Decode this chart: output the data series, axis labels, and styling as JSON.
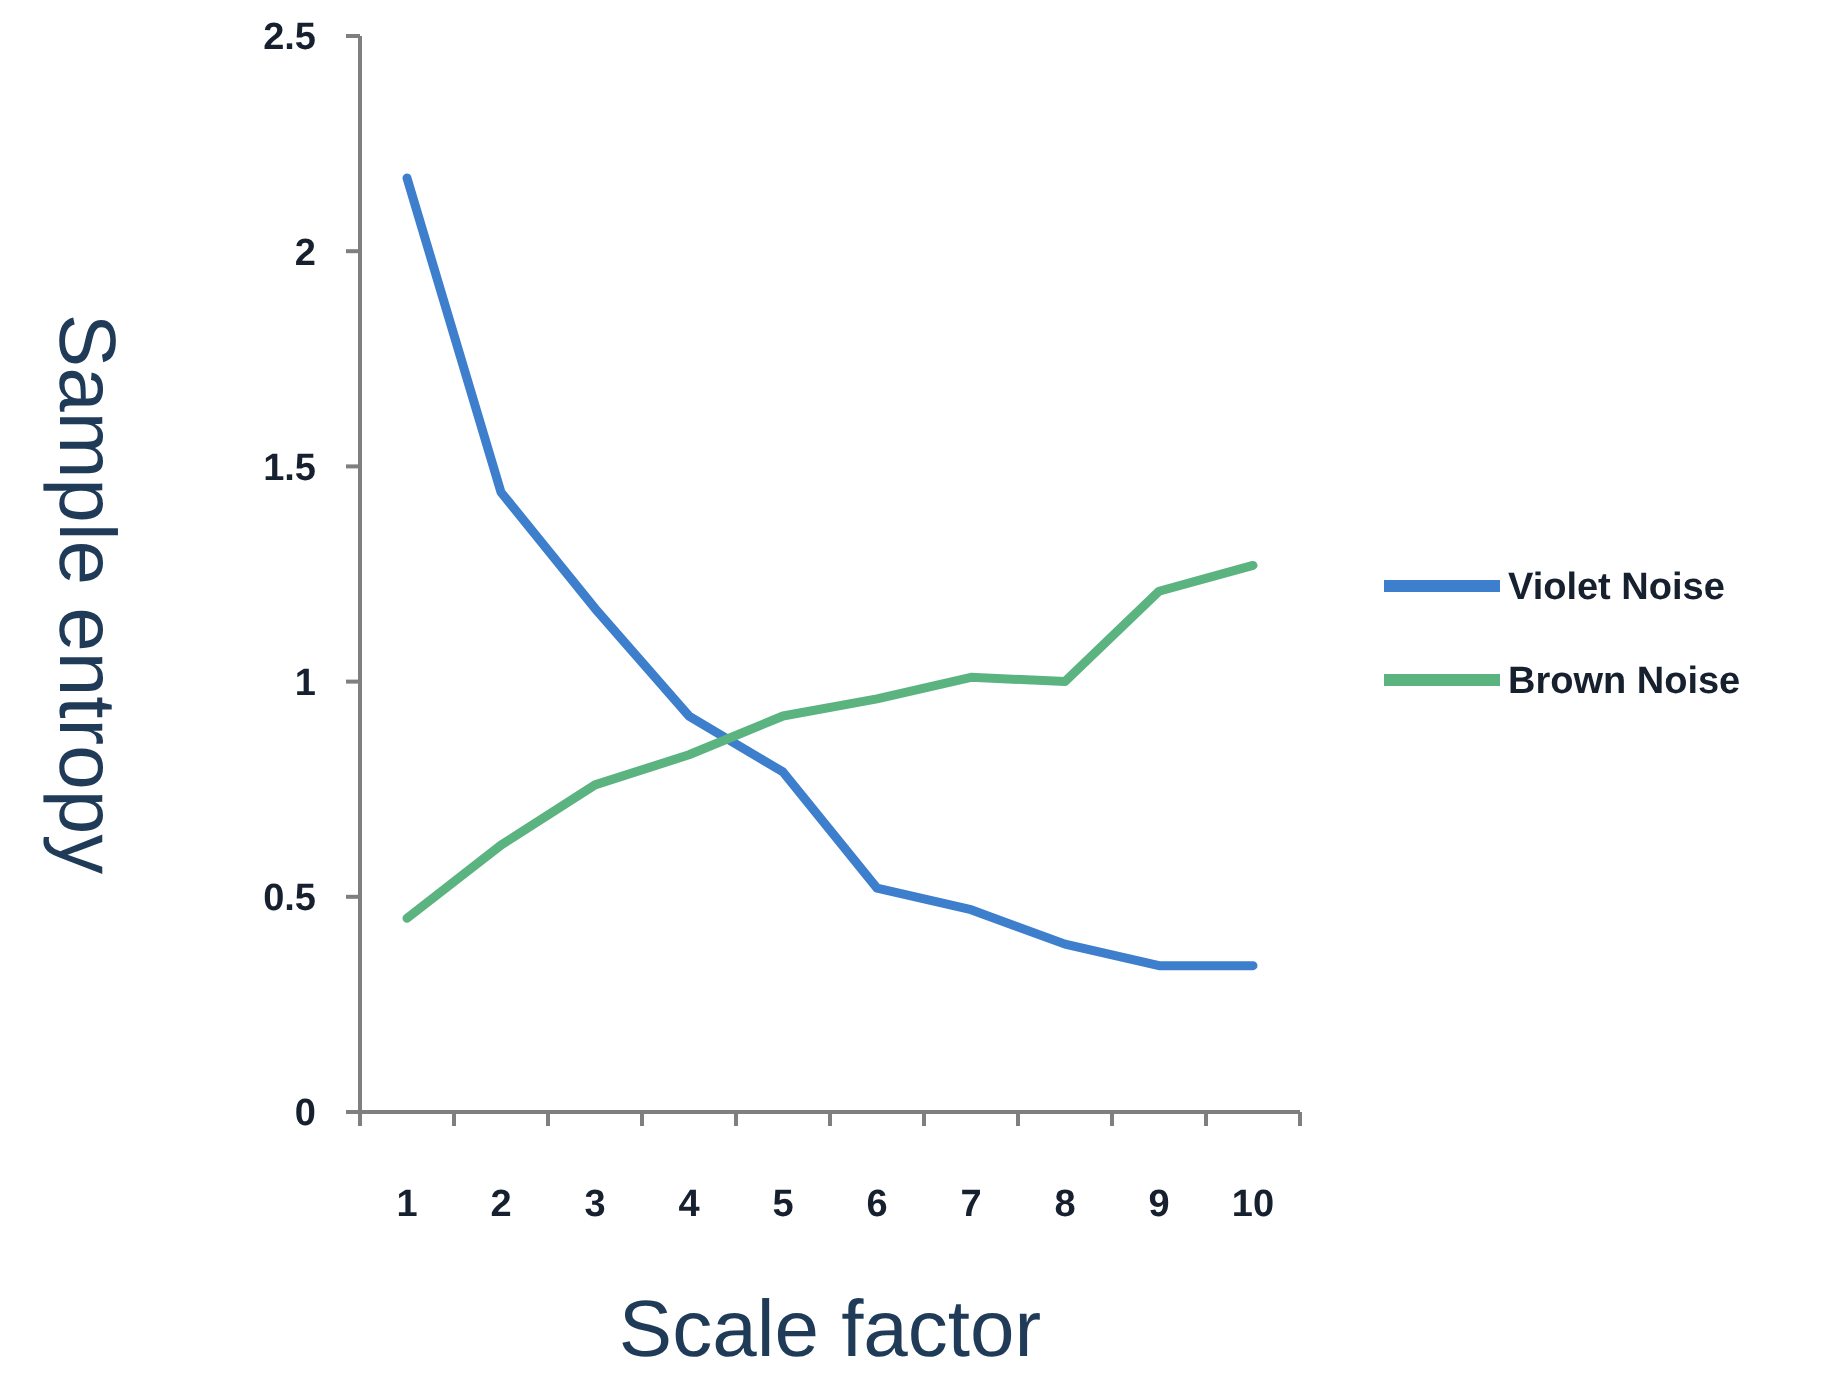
{
  "chart_data": {
    "type": "line",
    "xlabel": "Scale factor",
    "ylabel": "Sample entropy",
    "categories": [
      "1",
      "2",
      "3",
      "4",
      "5",
      "6",
      "7",
      "8",
      "9",
      "10"
    ],
    "series": [
      {
        "name": "Violet Noise",
        "color": "#3d7fcc",
        "values": [
          2.17,
          1.44,
          1.17,
          0.92,
          0.79,
          0.52,
          0.47,
          0.39,
          0.34,
          0.34
        ]
      },
      {
        "name": "Brown Noise",
        "color": "#5bb380",
        "values": [
          0.45,
          0.62,
          0.76,
          0.83,
          0.92,
          0.96,
          1.01,
          1.0,
          1.21,
          1.27
        ]
      }
    ],
    "ylim": [
      0,
      2.5
    ],
    "yticks": [
      0,
      0.5,
      1,
      1.5,
      2,
      2.5
    ],
    "grid": false,
    "legend": "right",
    "marker": "none",
    "line_style": "solid"
  }
}
